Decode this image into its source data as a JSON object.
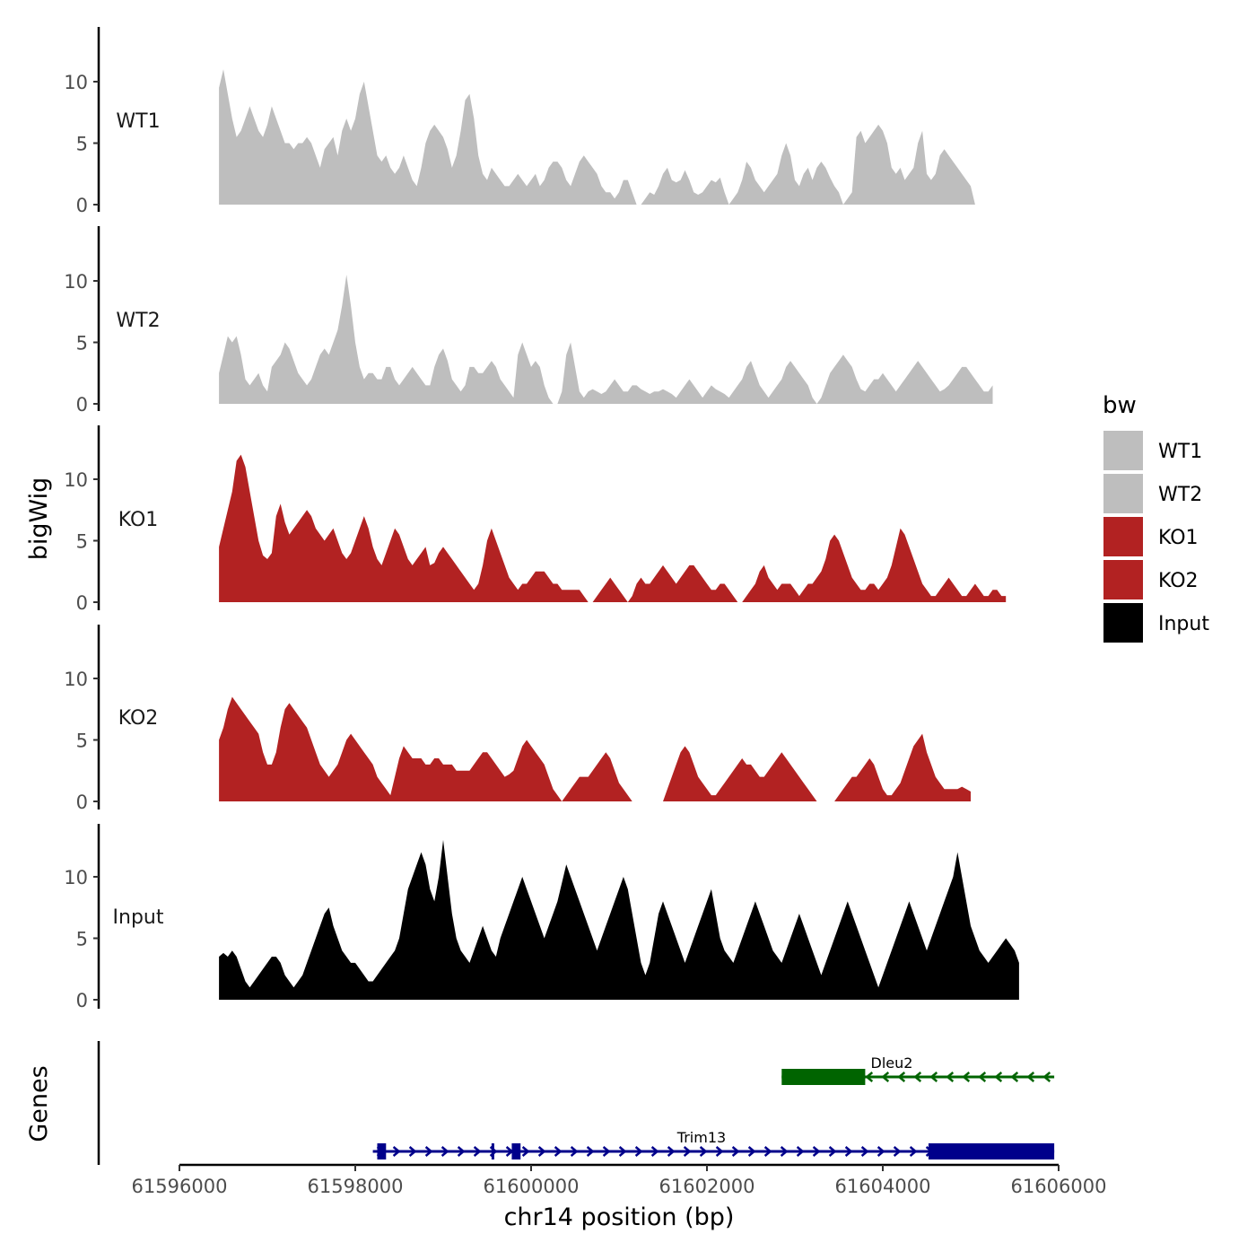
{
  "chart_data": {
    "type": "area",
    "title": "",
    "xlabel": "chr14 position (bp)",
    "ylabel": "bigWig",
    "genes_axis_label": "Genes",
    "xlim": [
      61596000,
      61606000
    ],
    "ylim": [
      0,
      14
    ],
    "x_ticks": [
      61596000,
      61598000,
      61600000,
      61602000,
      61604000,
      61606000
    ],
    "x_tick_labels": [
      "61596000",
      "61598000",
      "61600000",
      "61602000",
      "61604000",
      "61606000"
    ],
    "y_ticks": [
      0,
      5,
      10
    ],
    "y_tick_labels": [
      "0",
      "5",
      "10"
    ],
    "legend": {
      "title": "bw",
      "position": "right",
      "entries": [
        {
          "label": "WT1",
          "color": "#bebebe"
        },
        {
          "label": "WT2",
          "color": "#bebebe"
        },
        {
          "label": "KO1",
          "color": "#b22222"
        },
        {
          "label": "KO2",
          "color": "#b22222"
        },
        {
          "label": "Input",
          "color": "#000000"
        }
      ]
    },
    "x_start": 61596450,
    "x_step": 50,
    "series": [
      {
        "name": "WT1",
        "color": "#bebebe",
        "values": [
          9.5,
          11,
          9,
          7,
          5.5,
          6,
          7,
          8,
          7,
          6,
          5.5,
          6.5,
          8,
          7,
          6,
          5,
          5,
          4.5,
          5,
          5,
          5.5,
          5,
          4,
          3,
          4.5,
          5,
          5.5,
          4,
          6,
          7,
          6,
          7,
          9,
          10,
          8,
          6,
          4,
          3.5,
          4,
          3,
          2.5,
          3,
          4,
          3,
          2,
          1.5,
          3,
          5,
          6,
          6.5,
          6,
          5.5,
          4.5,
          3,
          4,
          6,
          8.5,
          9,
          7,
          4,
          2.5,
          2,
          3,
          2.5,
          2,
          1.5,
          1.5,
          2,
          2.5,
          2,
          1.5,
          2,
          2.5,
          1.5,
          2,
          3,
          3.5,
          3.5,
          3,
          2,
          1.5,
          2.5,
          3.5,
          4,
          3.5,
          3,
          2.5,
          1.5,
          1,
          1,
          0.5,
          1,
          2,
          2,
          1,
          0,
          0,
          0.5,
          1,
          0.8,
          1.5,
          2.5,
          3,
          2,
          1.8,
          2,
          2.8,
          2,
          1,
          0.8,
          1,
          1.5,
          2,
          1.8,
          2.2,
          1,
          0,
          0.5,
          1,
          2,
          3.5,
          3,
          2,
          1.5,
          1,
          1.5,
          2,
          2.5,
          4,
          5,
          4,
          2,
          1.5,
          2.5,
          3,
          2,
          3,
          3.5,
          3,
          2.2,
          1.5,
          1,
          0,
          0.5,
          1,
          5.5,
          6,
          5,
          5.5,
          6,
          6.5,
          6,
          5,
          3,
          2.5,
          3,
          2,
          2.5,
          3,
          5,
          6,
          2.5,
          2,
          2.5,
          4,
          4.5,
          4,
          3.5,
          3,
          2.5,
          2,
          1.5,
          0
        ]
      },
      {
        "name": "WT2",
        "color": "#bebebe",
        "values": [
          2.5,
          4,
          5.5,
          5,
          5.5,
          4,
          2,
          1.5,
          2,
          2.5,
          1.5,
          1,
          3,
          3.5,
          4,
          5,
          4.5,
          3.5,
          2.5,
          2,
          1.5,
          2,
          3,
          4,
          4.5,
          4,
          5,
          6,
          8,
          10.5,
          8,
          5,
          3,
          2,
          2.5,
          2.5,
          2,
          2,
          3,
          3,
          2,
          1.5,
          2,
          2.5,
          3,
          2.5,
          2,
          1.5,
          1.5,
          3,
          4,
          4.5,
          3.5,
          2,
          1.5,
          1,
          1.5,
          3,
          3,
          2.5,
          2.5,
          3,
          3.5,
          3,
          2,
          1.5,
          1,
          0.5,
          4,
          5,
          4,
          3,
          3.5,
          3,
          1.5,
          0.5,
          0,
          0,
          1,
          4,
          5,
          3,
          1,
          0.5,
          1,
          1.2,
          1,
          0.8,
          1,
          1.5,
          2,
          1.5,
          1,
          1,
          1.5,
          1.5,
          1.2,
          1,
          0.8,
          1,
          1,
          1.2,
          1,
          0.8,
          0.5,
          1,
          1.5,
          2,
          1.5,
          1,
          0.5,
          1,
          1.5,
          1.2,
          1,
          0.8,
          0.5,
          1,
          1.5,
          2,
          3,
          3.5,
          2.5,
          1.5,
          1,
          0.5,
          1,
          1.5,
          2,
          3,
          3.5,
          3,
          2.5,
          2,
          1.5,
          0.5,
          0,
          0.5,
          1.5,
          2.5,
          3,
          3.5,
          4,
          3.5,
          3,
          2,
          1.2,
          1,
          1.5,
          2,
          2,
          2.5,
          2,
          1.5,
          1,
          1.5,
          2,
          2.5,
          3,
          3.5,
          3,
          2.5,
          2,
          1.5,
          1,
          1.2,
          1.5,
          2,
          2.5,
          3,
          3,
          2.5,
          2,
          1.5,
          1,
          1,
          1.5
        ]
      },
      {
        "name": "KO1",
        "color": "#b22222",
        "values": [
          4.5,
          6,
          7.5,
          9,
          11.5,
          12,
          11,
          9,
          7,
          5,
          3.8,
          3.5,
          4,
          7,
          8,
          6.5,
          5.5,
          6,
          6.5,
          7,
          7.5,
          7,
          6,
          5.5,
          5,
          5.5,
          6,
          5,
          4,
          3.5,
          4,
          5,
          6,
          7,
          6,
          4.5,
          3.5,
          3,
          4,
          5,
          6,
          5.5,
          4.5,
          3.5,
          3,
          3.5,
          4,
          4.5,
          3,
          3.2,
          4,
          4.5,
          4,
          3.5,
          3,
          2.5,
          2,
          1.5,
          1,
          1.5,
          3,
          5,
          6,
          5,
          4,
          3,
          2,
          1.5,
          1,
          1.5,
          1.5,
          2,
          2.5,
          2.5,
          2.5,
          2,
          1.5,
          1.5,
          1,
          1,
          1,
          1,
          1,
          0.5,
          0,
          0,
          0.5,
          1,
          1.5,
          2,
          1.5,
          1,
          0.5,
          0,
          0.5,
          1.5,
          2,
          1.5,
          1.5,
          2,
          2.5,
          3,
          2.5,
          2,
          1.5,
          2,
          2.5,
          3,
          3,
          2.5,
          2,
          1.5,
          1,
          1,
          1.5,
          1.5,
          1,
          0.5,
          0,
          0,
          0.5,
          1,
          1.5,
          2.5,
          3,
          2,
          1.5,
          1,
          1.5,
          1.5,
          1.5,
          1,
          0.5,
          1,
          1.5,
          1.5,
          2,
          2.5,
          3.5,
          5,
          5.5,
          5,
          4,
          3,
          2,
          1.5,
          1,
          1,
          1.5,
          1.5,
          1,
          1.5,
          2,
          3,
          4.5,
          6,
          5.5,
          4.5,
          3.5,
          2.5,
          1.5,
          1,
          0.5,
          0.5,
          1,
          1.5,
          2,
          1.5,
          1,
          0.5,
          0.5,
          1,
          1.5,
          1,
          0.5,
          0.5,
          1,
          1,
          0.5,
          0.5
        ]
      },
      {
        "name": "KO2",
        "color": "#b22222",
        "values": [
          5,
          6,
          7.5,
          8.5,
          8,
          7.5,
          7,
          6.5,
          6,
          5.5,
          4,
          3,
          3,
          4,
          6,
          7.5,
          8,
          7.5,
          7,
          6.5,
          6,
          5,
          4,
          3,
          2.5,
          2,
          2.5,
          3,
          4,
          5,
          5.5,
          5,
          4.5,
          4,
          3.5,
          3,
          2,
          1.5,
          1,
          0.5,
          2,
          3.5,
          4.5,
          4,
          3.5,
          3.5,
          3.5,
          3,
          3,
          3.5,
          3.5,
          3,
          3,
          3,
          2.5,
          2.5,
          2.5,
          2.5,
          3,
          3.5,
          4,
          4,
          3.5,
          3,
          2.5,
          2,
          2.2,
          2.5,
          3.5,
          4.5,
          5,
          4.5,
          4,
          3.5,
          3,
          2,
          1,
          0.5,
          0,
          0.5,
          1,
          1.5,
          2,
          2,
          2,
          2.5,
          3,
          3.5,
          4,
          3.5,
          2.5,
          1.5,
          1,
          0.5,
          0,
          0,
          0,
          0,
          0,
          0,
          0,
          0,
          1,
          2,
          3,
          4,
          4.5,
          4,
          3,
          2,
          1.5,
          1,
          0.5,
          0.5,
          1,
          1.5,
          2,
          2.5,
          3,
          3.5,
          3,
          3,
          2.5,
          2,
          2,
          2.5,
          3,
          3.5,
          4,
          3.5,
          3,
          2.5,
          2,
          1.5,
          1,
          0.5,
          0,
          0,
          0,
          0,
          0,
          0.5,
          1,
          1.5,
          2,
          2,
          2.5,
          3,
          3.5,
          3,
          2,
          1,
          0.5,
          0.5,
          1,
          1.5,
          2.5,
          3.5,
          4.5,
          5,
          5.5,
          4,
          3,
          2,
          1.5,
          1,
          1,
          1,
          1,
          1.2,
          1,
          0.8
        ]
      },
      {
        "name": "Input",
        "color": "#000000",
        "values": [
          3.5,
          3.8,
          3.5,
          4,
          3.5,
          2.5,
          1.5,
          1,
          1.5,
          2,
          2.5,
          3,
          3.5,
          3.5,
          3,
          2,
          1.5,
          1,
          1.5,
          2,
          3,
          4,
          5,
          6,
          7,
          7.5,
          6,
          5,
          4,
          3.5,
          3,
          3,
          2.5,
          2,
          1.5,
          1.5,
          2,
          2.5,
          3,
          3.5,
          4,
          5,
          7,
          9,
          10,
          11,
          12,
          11,
          9,
          8,
          10,
          13,
          10,
          7,
          5,
          4,
          3.5,
          3,
          4,
          5,
          6,
          5,
          4,
          3.5,
          5,
          6,
          7,
          8,
          9,
          10,
          9,
          8,
          7,
          6,
          5,
          6,
          7,
          8,
          9.5,
          11,
          10,
          9,
          8,
          7,
          6,
          5,
          4,
          5,
          6,
          7,
          8,
          9,
          10,
          9,
          7,
          5,
          3,
          2,
          3,
          5,
          7,
          8,
          7,
          6,
          5,
          4,
          3,
          4,
          5,
          6,
          7,
          8,
          9,
          7,
          5,
          4,
          3.5,
          3,
          4,
          5,
          6,
          7,
          8,
          7,
          6,
          5,
          4,
          3.5,
          3,
          4,
          5,
          6,
          7,
          6,
          5,
          4,
          3,
          2,
          3,
          4,
          5,
          6,
          7,
          8,
          7,
          6,
          5,
          4,
          3,
          2,
          1,
          2,
          3,
          4,
          5,
          6,
          7,
          8,
          7,
          6,
          5,
          4,
          5,
          6,
          7,
          8,
          9,
          10,
          12,
          10,
          8,
          6,
          5,
          4,
          3.5,
          3,
          3.5,
          4,
          4.5,
          5,
          4.5,
          4,
          3
        ]
      }
    ],
    "genes": [
      {
        "name": "Dleu2",
        "strand": "-",
        "color": "#006400",
        "start": 61602850,
        "end": 61605950,
        "exons": [
          [
            61602850,
            61603800
          ]
        ]
      },
      {
        "name": "Trim13",
        "strand": "+",
        "color": "#00008b",
        "start": 61598200,
        "end": 61605950,
        "exons": [
          [
            61598250,
            61598350
          ],
          [
            61599550,
            61599580
          ],
          [
            61599780,
            61599880
          ],
          [
            61604520,
            61605950
          ]
        ]
      }
    ]
  }
}
